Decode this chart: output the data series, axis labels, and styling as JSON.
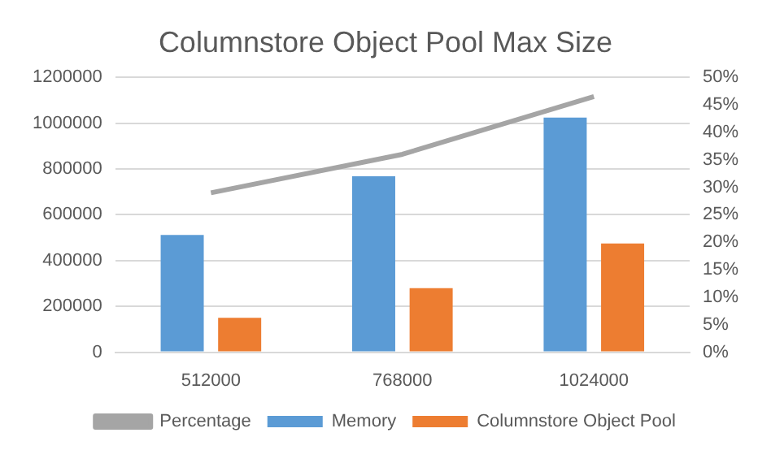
{
  "chart_data": {
    "type": "bar",
    "title": "Columnstore Object Pool Max Size",
    "categories": [
      "512000",
      "768000",
      "1024000"
    ],
    "series": [
      {
        "name": "Memory",
        "color": "#5b9bd5",
        "values": [
          512000,
          768000,
          1024000
        ]
      },
      {
        "name": "Columnstore Object Pool",
        "color": "#ed7d31",
        "values": [
          150000,
          280000,
          475000
        ]
      },
      {
        "name": "Percentage",
        "type": "line",
        "axis": "y2",
        "color": "#a5a5a5",
        "values": [
          29,
          36,
          46.5
        ]
      }
    ],
    "ylim": [
      0,
      1200000
    ],
    "yticks": [
      0,
      200000,
      400000,
      600000,
      800000,
      1000000,
      1200000
    ],
    "y2lim": [
      0,
      50
    ],
    "y2ticks": [
      {
        "value": 0,
        "label": "0%"
      },
      {
        "value": 5,
        "label": "5%"
      },
      {
        "value": 10,
        "label": "10%"
      },
      {
        "value": 15,
        "label": "15%"
      },
      {
        "value": 20,
        "label": "20%"
      },
      {
        "value": 25,
        "label": "25%"
      },
      {
        "value": 30,
        "label": "30%"
      },
      {
        "value": 35,
        "label": "35%"
      },
      {
        "value": 40,
        "label": "40%"
      },
      {
        "value": 45,
        "label": "45%"
      },
      {
        "value": 50,
        "label": "50%"
      }
    ],
    "grid": "y",
    "legend": "bottom",
    "marker": "none"
  }
}
